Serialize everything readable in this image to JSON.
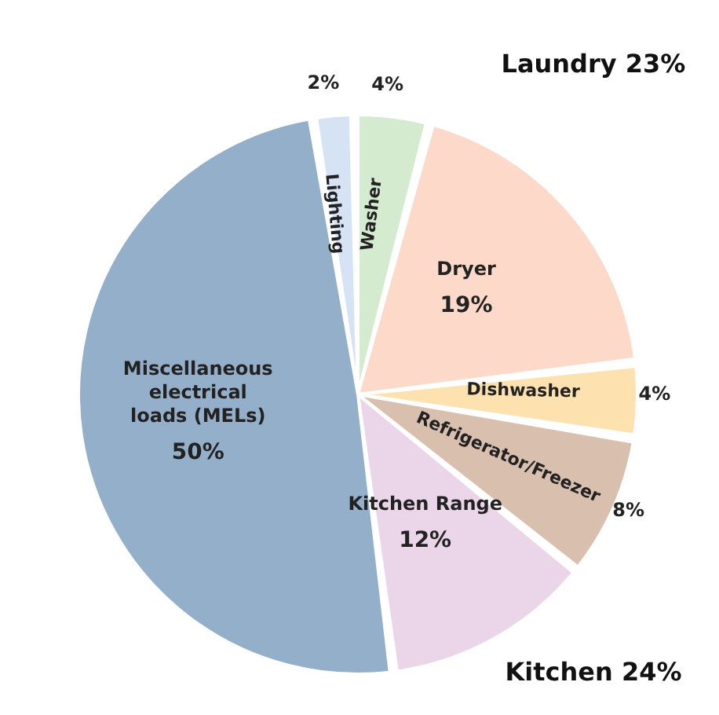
{
  "chart_data": {
    "type": "pie",
    "categories": [
      "Washer",
      "Dryer",
      "Dishwasher",
      "Refrigerator/Freezer",
      "Kitchen Range",
      "Miscellaneous electrical loads (MELs)",
      "Lighting"
    ],
    "values": [
      4,
      19,
      4,
      8,
      12,
      50,
      2
    ],
    "value_labels": [
      "4%",
      "19%",
      "4%",
      "8%",
      "12%",
      "50%",
      "2%"
    ],
    "colors": [
      "#d5ebd0",
      "#fcd9c9",
      "#fde2b0",
      "#d9bfae",
      "#ebd5e8",
      "#94afc9",
      "#d6e3f5"
    ],
    "annotations": [
      "Laundry 23%",
      "Kitchen 24%"
    ],
    "legend": false
  }
}
